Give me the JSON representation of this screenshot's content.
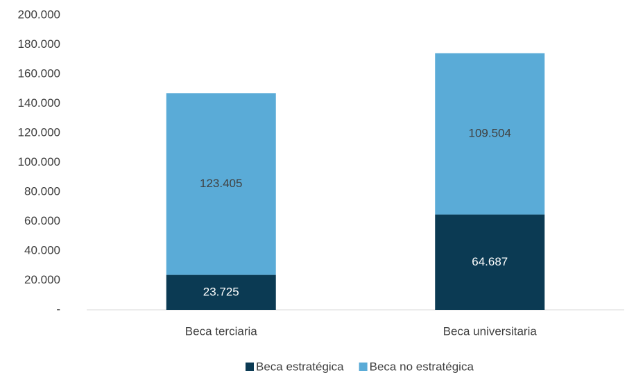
{
  "chart_data": {
    "type": "stacked_bar",
    "categories": [
      "Beca terciaria",
      "Beca universitaria"
    ],
    "series": [
      {
        "name": "Beca estratégica",
        "color": "#0b3a53",
        "values": [
          23725,
          64687
        ],
        "value_labels": [
          "23.725",
          "64.687"
        ]
      },
      {
        "name": "Beca no estratégica",
        "color": "#5aabd7",
        "values": [
          123405,
          109504
        ],
        "value_labels": [
          "123.405",
          "109.504"
        ]
      }
    ],
    "ylim": [
      0,
      200000
    ],
    "yticks": [
      {
        "value": 0,
        "label": "-"
      },
      {
        "value": 20000,
        "label": "20.000"
      },
      {
        "value": 40000,
        "label": "40.000"
      },
      {
        "value": 60000,
        "label": "60.000"
      },
      {
        "value": 80000,
        "label": "80.000"
      },
      {
        "value": 100000,
        "label": "100.000"
      },
      {
        "value": 120000,
        "label": "120.000"
      },
      {
        "value": 140000,
        "label": "140.000"
      },
      {
        "value": 160000,
        "label": "160.000"
      },
      {
        "value": 180000,
        "label": "180.000"
      },
      {
        "value": 200000,
        "label": "200.000"
      }
    ],
    "grid": false,
    "legend": "bottom"
  }
}
